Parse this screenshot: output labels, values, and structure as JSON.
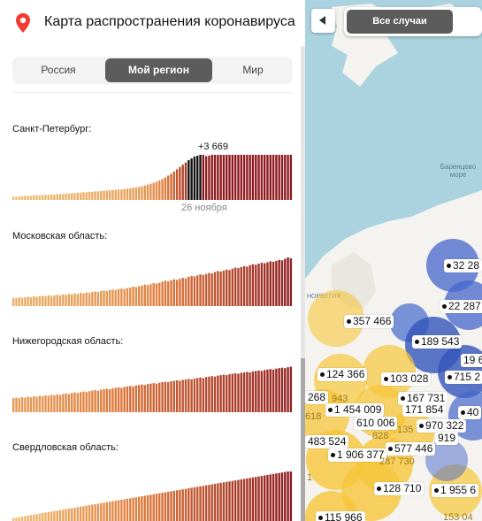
{
  "header": {
    "title": "Карта распространения коронавируса ...",
    "pin_icon": "map-pin-icon",
    "pin_color": "#f13c2f"
  },
  "tabs": [
    {
      "label": "Россия",
      "active": false
    },
    {
      "label": "Мой регион",
      "active": true
    },
    {
      "label": "Мир",
      "active": false
    }
  ],
  "regions": [
    {
      "name": "Санкт-Петербург:",
      "callout": "+3 669",
      "date_label": "26 ноября",
      "chart_data": {
        "type": "bar",
        "title": "Санкт-Петербург:",
        "highlighted_label": "+3 669",
        "x_label": "26 ноября",
        "values": [
          0.07,
          0.07,
          0.08,
          0.08,
          0.09,
          0.09,
          0.09,
          0.1,
          0.1,
          0.1,
          0.11,
          0.11,
          0.11,
          0.12,
          0.12,
          0.13,
          0.13,
          0.13,
          0.14,
          0.14,
          0.15,
          0.15,
          0.16,
          0.16,
          0.17,
          0.17,
          0.18,
          0.18,
          0.19,
          0.19,
          0.2,
          0.2,
          0.21,
          0.21,
          0.22,
          0.22,
          0.23,
          0.23,
          0.24,
          0.25,
          0.26,
          0.27,
          0.28,
          0.29,
          0.3,
          0.32,
          0.34,
          0.36,
          0.38,
          0.4,
          0.43,
          0.46,
          0.5,
          0.54,
          0.58,
          0.63,
          0.68,
          0.73,
          0.78,
          0.83,
          0.88,
          0.92,
          0.96,
          0.98,
          1.0,
          1.0,
          0.97,
          0.98,
          1.0,
          1.0,
          1.0,
          1.0,
          1.0,
          1.0,
          1.0,
          1.0,
          1.0,
          1.0,
          1.0,
          1.0,
          1.0,
          1.0,
          1.0,
          1.0,
          1.0,
          1.0,
          1.0,
          1.0,
          1.0,
          1.0,
          1.0,
          1.0,
          1.0,
          1.0,
          1.0,
          1.0
        ],
        "highlight_indices": [
          60,
          61,
          62,
          63,
          64
        ]
      }
    },
    {
      "name": "Московская область:",
      "chart_data": {
        "type": "bar",
        "title": "Московская область:",
        "values": [
          0.17,
          0.16,
          0.18,
          0.17,
          0.18,
          0.19,
          0.18,
          0.2,
          0.19,
          0.2,
          0.21,
          0.2,
          0.22,
          0.21,
          0.22,
          0.23,
          0.22,
          0.24,
          0.23,
          0.25,
          0.24,
          0.26,
          0.25,
          0.27,
          0.26,
          0.28,
          0.27,
          0.29,
          0.3,
          0.29,
          0.31,
          0.32,
          0.31,
          0.33,
          0.34,
          0.33,
          0.35,
          0.36,
          0.35,
          0.37,
          0.38,
          0.4,
          0.39,
          0.41,
          0.42,
          0.44,
          0.43,
          0.45,
          0.47,
          0.46,
          0.48,
          0.5,
          0.52,
          0.51,
          0.53,
          0.55,
          0.54,
          0.56,
          0.58,
          0.57,
          0.6,
          0.62,
          0.61,
          0.63,
          0.65,
          0.64,
          0.66,
          0.68,
          0.67,
          0.7,
          0.72,
          0.71,
          0.73,
          0.75,
          0.74,
          0.77,
          0.79,
          0.78,
          0.8,
          0.82,
          0.81,
          0.84,
          0.86,
          0.85,
          0.87,
          0.89,
          0.88,
          0.9,
          0.92,
          0.91,
          0.93,
          0.95,
          0.94,
          0.97,
          1.0,
          0.98
        ]
      }
    },
    {
      "name": "Нижегородская область:",
      "chart_data": {
        "type": "bar",
        "title": "Нижегородская область:",
        "values": [
          0.3,
          0.31,
          0.3,
          0.32,
          0.31,
          0.33,
          0.32,
          0.34,
          0.33,
          0.35,
          0.34,
          0.36,
          0.35,
          0.37,
          0.36,
          0.38,
          0.37,
          0.39,
          0.4,
          0.39,
          0.41,
          0.42,
          0.41,
          0.43,
          0.44,
          0.43,
          0.45,
          0.46,
          0.47,
          0.46,
          0.48,
          0.49,
          0.5,
          0.49,
          0.51,
          0.52,
          0.53,
          0.52,
          0.54,
          0.55,
          0.56,
          0.55,
          0.57,
          0.58,
          0.59,
          0.58,
          0.6,
          0.61,
          0.62,
          0.61,
          0.63,
          0.64,
          0.65,
          0.64,
          0.66,
          0.67,
          0.68,
          0.67,
          0.69,
          0.7,
          0.71,
          0.7,
          0.72,
          0.73,
          0.74,
          0.73,
          0.75,
          0.76,
          0.77,
          0.76,
          0.78,
          0.79,
          0.8,
          0.79,
          0.81,
          0.82,
          0.83,
          0.82,
          0.84,
          0.85,
          0.86,
          0.85,
          0.87,
          0.88,
          0.89,
          0.88,
          0.9,
          0.91,
          0.92,
          0.91,
          0.93,
          0.94,
          0.95,
          0.94,
          0.96,
          0.97
        ]
      }
    },
    {
      "name": "Свердловская область:",
      "chart_data": {
        "type": "bar",
        "title": "Свердловская область:",
        "values": [
          0.06,
          0.07,
          0.08,
          0.09,
          0.1,
          0.11,
          0.12,
          0.13,
          0.14,
          0.15,
          0.16,
          0.17,
          0.18,
          0.19,
          0.2,
          0.21,
          0.22,
          0.23,
          0.24,
          0.25,
          0.26,
          0.27,
          0.28,
          0.29,
          0.3,
          0.31,
          0.32,
          0.33,
          0.34,
          0.35,
          0.36,
          0.37,
          0.38,
          0.39,
          0.4,
          0.41,
          0.42,
          0.43,
          0.44,
          0.45,
          0.46,
          0.47,
          0.48,
          0.49,
          0.5,
          0.51,
          0.52,
          0.53,
          0.54,
          0.55,
          0.56,
          0.57,
          0.58,
          0.59,
          0.6,
          0.61,
          0.62,
          0.63,
          0.64,
          0.65,
          0.66,
          0.67,
          0.68,
          0.69,
          0.7,
          0.71,
          0.72,
          0.73,
          0.74,
          0.75,
          0.76,
          0.77,
          0.78,
          0.79,
          0.8,
          0.81,
          0.82,
          0.83,
          0.84,
          0.85,
          0.86,
          0.87,
          0.88,
          0.89,
          0.9,
          0.91,
          0.92,
          0.93,
          0.94,
          0.95,
          0.96,
          0.97,
          0.98,
          0.99,
          1.0,
          1.0
        ]
      }
    }
  ],
  "colors": {
    "bar_low": "#f2c77a",
    "bar_mid": "#e07a3a",
    "bar_high": "#8e1a1f",
    "bar_highlight": "#111111",
    "tab_active": "#5c5c5c"
  },
  "map": {
    "collapse_icon": "chevron-left-icon",
    "toggle_label": "Все случаи",
    "sea_label": "Баренцево море",
    "country_label": "НОРВЕГИЯ",
    "markers": [
      "32 28",
      "22 287",
      "357 466",
      "189 543",
      "19 6",
      "124 366",
      "103 028",
      "715 2",
      "268",
      "943",
      "1 454 009",
      "171 854",
      "167 731",
      "40",
      "618",
      "610 006",
      "970 322",
      "828",
      "135",
      "483 524",
      "577 446",
      "919",
      "1 906 377",
      "287 730",
      "1",
      "128 710",
      "1 955 6",
      "115 966",
      "153 04"
    ]
  }
}
